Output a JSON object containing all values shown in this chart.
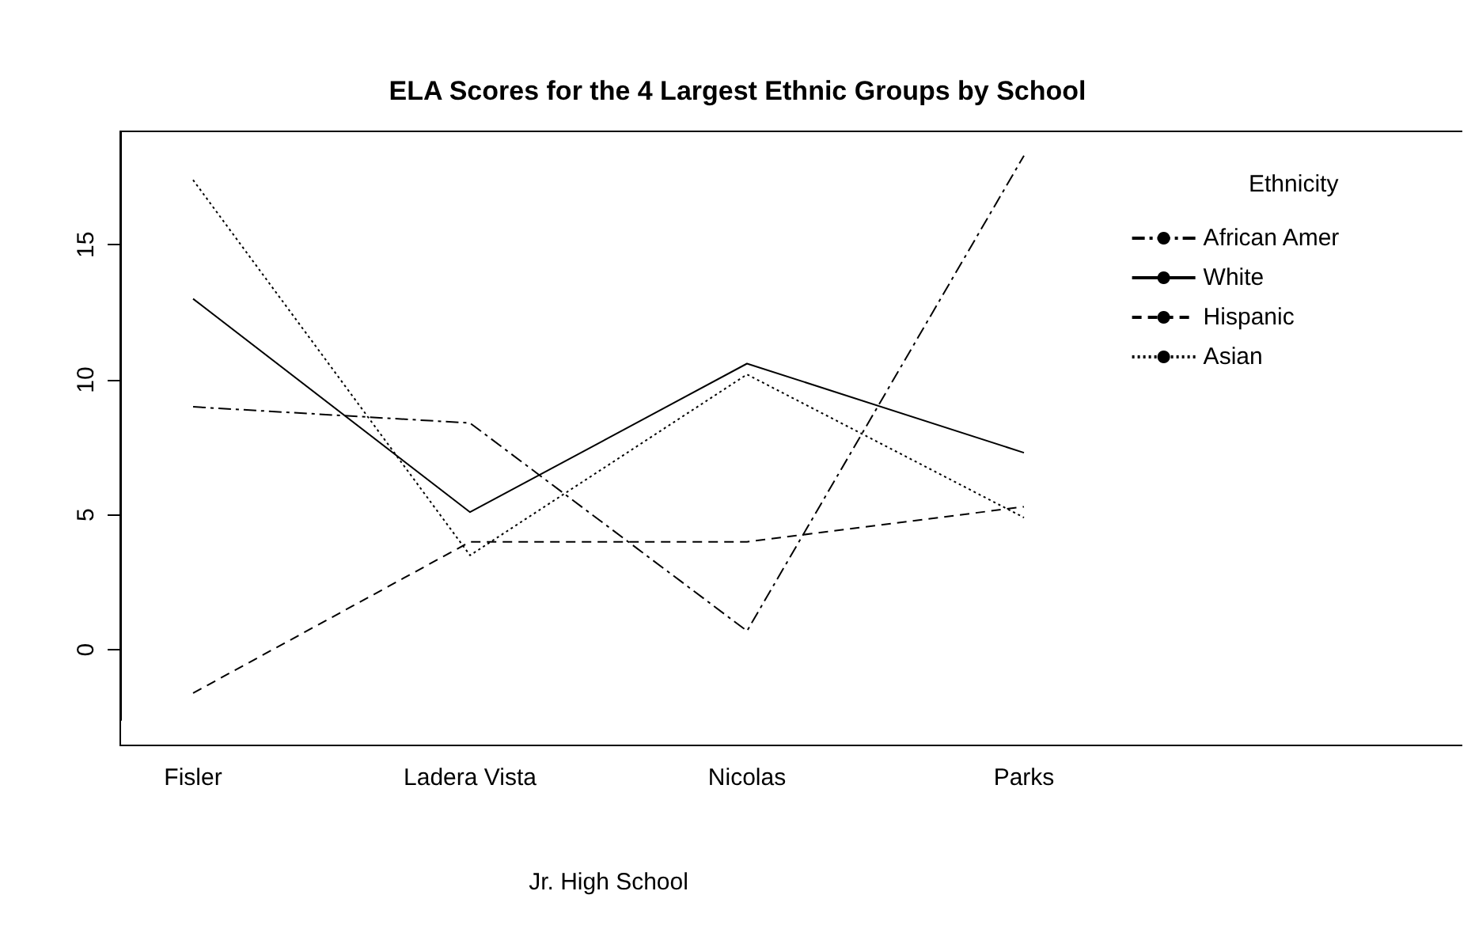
{
  "chart_data": {
    "type": "line",
    "title": "ELA Scores for the 4 Largest Ethnic Groups by School",
    "xlabel": "Jr. High School",
    "legend_title": "Ethnicity",
    "categories": [
      "Fisler",
      "Ladera Vista",
      "Nicolas",
      "Parks"
    ],
    "series": [
      {
        "name": "African Amer",
        "color": "#000000",
        "line_style": "dashdot",
        "values": [
          9.0,
          8.4,
          0.7,
          18.3
        ]
      },
      {
        "name": "White",
        "color": "#000000",
        "line_style": "solid",
        "values": [
          13.0,
          5.1,
          10.6,
          7.3
        ]
      },
      {
        "name": "Hispanic",
        "color": "#000000",
        "line_style": "dashed",
        "values": [
          -1.6,
          4.0,
          4.0,
          5.3
        ]
      },
      {
        "name": "Asian",
        "color": "#000000",
        "line_style": "dotted",
        "values": [
          17.4,
          3.5,
          10.2,
          4.9
        ]
      }
    ],
    "ylim": [
      -2.6,
      19.2
    ],
    "yticks": [
      0,
      5,
      10,
      15
    ],
    "grid": false,
    "legend": "top right",
    "marker": "none"
  }
}
